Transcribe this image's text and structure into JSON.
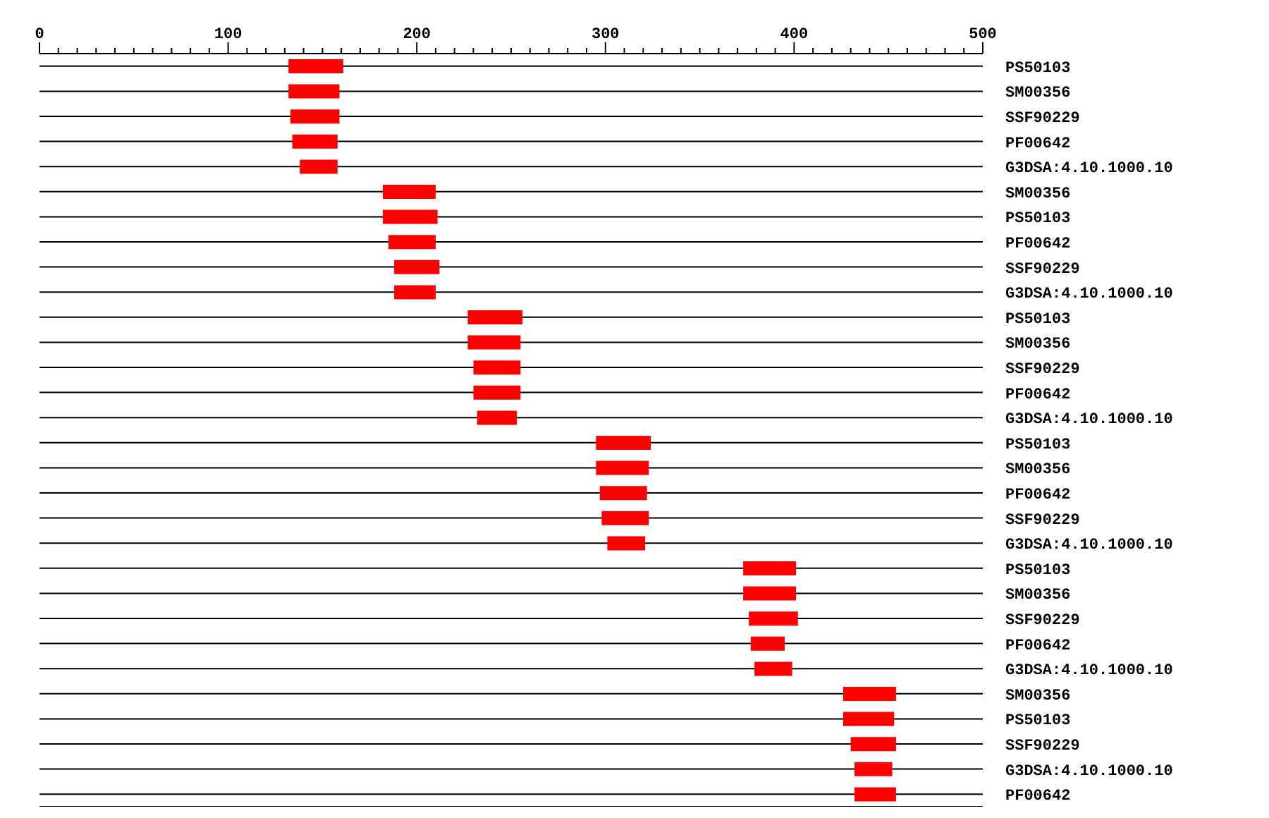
{
  "chart_data": {
    "type": "bar",
    "orientation": "horizontal",
    "grid": "y",
    "color": "#ff0000",
    "categories": [
      "PS50103",
      "SM00356",
      "SSF90229",
      "PF00642",
      "G3DSA:4.10.1000.10",
      "SM00356",
      "PS50103",
      "PF00642",
      "SSF90229",
      "G3DSA:4.10.1000.10",
      "PS50103",
      "SM00356",
      "SSF90229",
      "PF00642",
      "G3DSA:4.10.1000.10",
      "PS50103",
      "SM00356",
      "PF00642",
      "SSF90229",
      "G3DSA:4.10.1000.10",
      "PS50103",
      "SM00356",
      "SSF90229",
      "PF00642",
      "G3DSA:4.10.1000.10",
      "SM00356",
      "PS50103",
      "SSF90229",
      "G3DSA:4.10.1000.10",
      "PF00642"
    ],
    "base": [
      132,
      132,
      133,
      134,
      138,
      182,
      182,
      185,
      188,
      188,
      227,
      227,
      230,
      230,
      232,
      295,
      295,
      297,
      298,
      301,
      373,
      373,
      376,
      377,
      379,
      426,
      426,
      430,
      432,
      432
    ],
    "values": [
      29,
      27,
      26,
      24,
      20,
      28,
      29,
      25,
      24,
      22,
      29,
      28,
      25,
      25,
      21,
      29,
      28,
      25,
      25,
      20,
      28,
      28,
      26,
      18,
      20,
      28,
      27,
      24,
      20,
      22
    ],
    "xlim": [
      0,
      500
    ],
    "xticks": [
      0,
      {
        "value": 10,
        "label": null
      },
      {
        "value": 20,
        "label": null
      },
      {
        "value": 30,
        "label": null
      },
      {
        "value": 40,
        "label": null
      },
      {
        "value": 50,
        "label": null
      },
      {
        "value": 60,
        "label": null
      },
      {
        "value": 70,
        "label": null
      },
      {
        "value": 80,
        "label": null
      },
      {
        "value": 90,
        "label": null
      },
      100,
      {
        "value": 110,
        "label": null
      },
      {
        "value": 120,
        "label": null
      },
      {
        "value": 130,
        "label": null
      },
      {
        "value": 140,
        "label": null
      },
      {
        "value": 150,
        "label": null
      },
      {
        "value": 160,
        "label": null
      },
      {
        "value": 170,
        "label": null
      },
      {
        "value": 180,
        "label": null
      },
      {
        "value": 190,
        "label": null
      },
      200,
      {
        "value": 210,
        "label": null
      },
      {
        "value": 220,
        "label": null
      },
      {
        "value": 230,
        "label": null
      },
      {
        "value": 240,
        "label": null
      },
      {
        "value": 250,
        "label": null
      },
      {
        "value": 260,
        "label": null
      },
      {
        "value": 270,
        "label": null
      },
      {
        "value": 280,
        "label": null
      },
      {
        "value": 290,
        "label": null
      },
      300,
      {
        "value": 310,
        "label": null
      },
      {
        "value": 320,
        "label": null
      },
      {
        "value": 330,
        "label": null
      },
      {
        "value": 340,
        "label": null
      },
      {
        "value": 350,
        "label": null
      },
      {
        "value": 360,
        "label": null
      },
      {
        "value": 370,
        "label": null
      },
      {
        "value": 380,
        "label": null
      },
      {
        "value": 390,
        "label": null
      },
      400,
      {
        "value": 410,
        "label": null
      },
      {
        "value": 420,
        "label": null
      },
      {
        "value": 430,
        "label": null
      },
      {
        "value": 440,
        "label": null
      },
      {
        "value": 450,
        "label": null
      },
      {
        "value": 460,
        "label": null
      },
      {
        "value": 470,
        "label": null
      },
      {
        "value": 480,
        "label": null
      },
      {
        "value": 490,
        "label": null
      },
      500
    ]
  }
}
